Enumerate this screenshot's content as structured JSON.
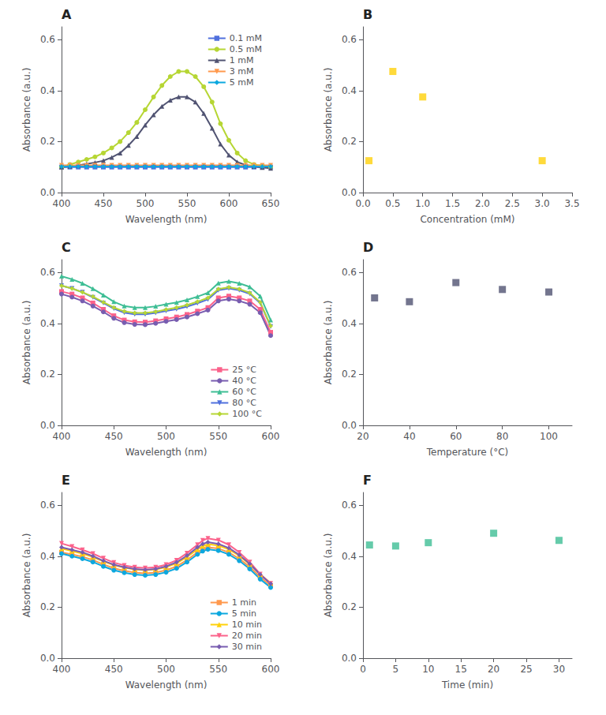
{
  "chart_data": [
    {
      "type": "line",
      "annotations": [
        "A"
      ],
      "xlabel": "Wavelength (nm)",
      "ylabel": "Absorbance (a.u.)",
      "x": [
        400,
        410,
        420,
        430,
        440,
        450,
        460,
        470,
        480,
        490,
        500,
        510,
        520,
        530,
        540,
        550,
        560,
        570,
        580,
        590,
        600,
        610,
        620,
        630,
        640,
        650
      ],
      "series": [
        {
          "name": "0.1 mM",
          "marker": "square",
          "values": [
            0.1,
            0.1,
            0.1,
            0.1,
            0.1,
            0.1,
            0.1,
            0.1,
            0.1,
            0.1,
            0.1,
            0.1,
            0.1,
            0.1,
            0.1,
            0.1,
            0.1,
            0.1,
            0.1,
            0.1,
            0.1,
            0.1,
            0.1,
            0.1,
            0.1,
            0.1
          ]
        },
        {
          "name": "0.5 mM",
          "marker": "circle",
          "values": [
            0.1,
            0.11,
            0.12,
            0.13,
            0.14,
            0.155,
            0.175,
            0.2,
            0.235,
            0.275,
            0.325,
            0.375,
            0.42,
            0.455,
            0.475,
            0.475,
            0.455,
            0.415,
            0.355,
            0.27,
            0.205,
            0.155,
            0.125,
            0.11,
            0.105,
            0.1
          ]
        },
        {
          "name": "1 mM",
          "marker": "triangle_up",
          "values": [
            0.1,
            0.103,
            0.107,
            0.112,
            0.118,
            0.125,
            0.138,
            0.155,
            0.185,
            0.22,
            0.265,
            0.305,
            0.338,
            0.362,
            0.375,
            0.375,
            0.355,
            0.31,
            0.252,
            0.19,
            0.147,
            0.12,
            0.108,
            0.102,
            0.098,
            0.095
          ]
        },
        {
          "name": "3 mM",
          "marker": "triangle_down",
          "values": [
            0.107,
            0.107,
            0.107,
            0.107,
            0.107,
            0.107,
            0.107,
            0.107,
            0.107,
            0.107,
            0.107,
            0.107,
            0.107,
            0.107,
            0.107,
            0.107,
            0.107,
            0.107,
            0.107,
            0.107,
            0.107,
            0.107,
            0.107,
            0.107,
            0.107,
            0.107
          ]
        },
        {
          "name": "5 mM",
          "marker": "diamond",
          "values": [
            0.102,
            0.102,
            0.102,
            0.102,
            0.102,
            0.102,
            0.102,
            0.102,
            0.102,
            0.102,
            0.102,
            0.102,
            0.102,
            0.102,
            0.102,
            0.102,
            0.102,
            0.102,
            0.102,
            0.102,
            0.102,
            0.102,
            0.102,
            0.102,
            0.102,
            0.102
          ]
        }
      ],
      "xlim": [
        400,
        650
      ],
      "xticks": [
        400,
        450,
        500,
        550,
        600,
        650
      ],
      "ylim": [
        0.0,
        0.65
      ],
      "yticks": [
        {
          "value": 0.0,
          "label": "0.0"
        },
        0.2,
        0.4,
        0.6
      ],
      "legend": "upper right",
      "grid": false
    },
    {
      "type": "scatter",
      "annotations": [
        "B"
      ],
      "xlabel": "Concentration (mM)",
      "ylabel": "Absorbance (a.u.)",
      "x": [
        0.1,
        0.5,
        1.0,
        3.0
      ],
      "values": [
        0.125,
        0.475,
        0.375,
        0.125
      ],
      "marker": "square",
      "xlim": [
        0,
        3.5
      ],
      "xticks": [
        {
          "value": 0.0,
          "label": "0.0"
        },
        0.5,
        {
          "value": 1.0,
          "label": "1.0"
        },
        1.5,
        {
          "value": 2.0,
          "label": "2.0"
        },
        2.5,
        {
          "value": 3.0,
          "label": "3.0"
        },
        3.5
      ],
      "ylim": [
        0.0,
        0.65
      ],
      "yticks": [
        {
          "value": 0.0,
          "label": "0.0"
        },
        0.2,
        0.4,
        0.6
      ],
      "grid": false
    },
    {
      "type": "line",
      "annotations": [
        "C"
      ],
      "xlabel": "Wavelength (nm)",
      "ylabel": "Absorbance (a.u.)",
      "x": [
        400,
        410,
        420,
        430,
        440,
        450,
        460,
        470,
        480,
        490,
        500,
        510,
        520,
        530,
        540,
        550,
        560,
        570,
        580,
        590,
        600
      ],
      "series": [
        {
          "name": "25 °C",
          "marker": "square",
          "values": [
            0.525,
            0.515,
            0.5,
            0.48,
            0.455,
            0.43,
            0.413,
            0.406,
            0.405,
            0.41,
            0.418,
            0.425,
            0.435,
            0.448,
            0.462,
            0.5,
            0.507,
            0.5,
            0.488,
            0.455,
            0.365
          ]
        },
        {
          "name": "40 °C",
          "marker": "circle",
          "values": [
            0.515,
            0.503,
            0.488,
            0.468,
            0.445,
            0.42,
            0.403,
            0.396,
            0.395,
            0.4,
            0.408,
            0.415,
            0.425,
            0.438,
            0.452,
            0.488,
            0.495,
            0.488,
            0.475,
            0.442,
            0.352
          ]
        },
        {
          "name": "60 °C",
          "marker": "triangle_up",
          "values": [
            0.585,
            0.573,
            0.557,
            0.536,
            0.511,
            0.485,
            0.468,
            0.462,
            0.462,
            0.467,
            0.475,
            0.482,
            0.492,
            0.505,
            0.52,
            0.558,
            0.565,
            0.557,
            0.543,
            0.507,
            0.413
          ]
        },
        {
          "name": "80 °C",
          "marker": "triangle_down",
          "values": [
            0.548,
            0.537,
            0.522,
            0.502,
            0.48,
            0.458,
            0.442,
            0.436,
            0.436,
            0.441,
            0.449,
            0.456,
            0.466,
            0.479,
            0.494,
            0.53,
            0.537,
            0.53,
            0.516,
            0.48,
            0.388
          ]
        },
        {
          "name": "100 °C",
          "marker": "diamond",
          "values": [
            0.548,
            0.537,
            0.522,
            0.505,
            0.483,
            0.462,
            0.447,
            0.441,
            0.441,
            0.446,
            0.454,
            0.462,
            0.472,
            0.485,
            0.5,
            0.535,
            0.542,
            0.535,
            0.52,
            0.483,
            0.39
          ]
        }
      ],
      "xlim": [
        400,
        600
      ],
      "xticks": [
        400,
        450,
        500,
        550,
        600
      ],
      "ylim": [
        0.0,
        0.65
      ],
      "yticks": [
        {
          "value": 0.0,
          "label": "0.0"
        },
        0.2,
        0.4,
        0.6
      ],
      "legend": "lower right",
      "grid": false
    },
    {
      "type": "scatter",
      "annotations": [
        "D"
      ],
      "xlabel": "Temperature (°C)",
      "ylabel": "Absorbance (a.u.)",
      "x": [
        25,
        40,
        60,
        80,
        100
      ],
      "values": [
        0.5,
        0.485,
        0.56,
        0.533,
        0.523
      ],
      "marker": "square",
      "xlim": [
        20,
        110
      ],
      "xticks": [
        20,
        40,
        60,
        80,
        100
      ],
      "ylim": [
        0.0,
        0.65
      ],
      "yticks": [
        {
          "value": 0.0,
          "label": "0.0"
        },
        0.2,
        0.4,
        0.6
      ],
      "grid": false
    },
    {
      "type": "line",
      "annotations": [
        "E"
      ],
      "xlabel": "Wavelength (nm)",
      "ylabel": "Absorbance (a.u.)",
      "x": [
        400,
        410,
        420,
        430,
        440,
        450,
        460,
        470,
        480,
        490,
        500,
        510,
        520,
        530,
        535,
        540,
        550,
        560,
        570,
        580,
        590,
        600
      ],
      "series": [
        {
          "name": "1 min",
          "marker": "square",
          "values": [
            0.415,
            0.407,
            0.398,
            0.385,
            0.368,
            0.353,
            0.343,
            0.336,
            0.333,
            0.336,
            0.345,
            0.36,
            0.385,
            0.415,
            0.428,
            0.435,
            0.43,
            0.415,
            0.39,
            0.358,
            0.318,
            0.285
          ]
        },
        {
          "name": "5 min",
          "marker": "circle",
          "values": [
            0.41,
            0.4,
            0.39,
            0.377,
            0.36,
            0.345,
            0.335,
            0.328,
            0.325,
            0.328,
            0.337,
            0.352,
            0.377,
            0.407,
            0.42,
            0.427,
            0.422,
            0.407,
            0.382,
            0.35,
            0.31,
            0.277
          ]
        },
        {
          "name": "10 min",
          "marker": "triangle_up",
          "values": [
            0.43,
            0.42,
            0.41,
            0.397,
            0.38,
            0.365,
            0.355,
            0.348,
            0.345,
            0.348,
            0.357,
            0.372,
            0.397,
            0.427,
            0.44,
            0.447,
            0.442,
            0.427,
            0.402,
            0.368,
            0.328,
            0.295
          ]
        },
        {
          "name": "20 min",
          "marker": "triangle_down",
          "values": [
            0.45,
            0.438,
            0.425,
            0.41,
            0.392,
            0.375,
            0.364,
            0.357,
            0.354,
            0.357,
            0.367,
            0.384,
            0.412,
            0.445,
            0.462,
            0.47,
            0.463,
            0.445,
            0.415,
            0.377,
            0.33,
            0.293
          ]
        },
        {
          "name": "30 min",
          "marker": "diamond",
          "values": [
            0.435,
            0.425,
            0.415,
            0.4,
            0.382,
            0.367,
            0.357,
            0.35,
            0.347,
            0.35,
            0.36,
            0.376,
            0.402,
            0.435,
            0.448,
            0.455,
            0.448,
            0.432,
            0.405,
            0.37,
            0.328,
            0.292
          ]
        }
      ],
      "xlim": [
        400,
        600
      ],
      "xticks": [
        400,
        450,
        500,
        550,
        600
      ],
      "ylim": [
        0.0,
        0.65
      ],
      "yticks": [
        {
          "value": 0.0,
          "label": "0.0"
        },
        0.2,
        0.4,
        0.6
      ],
      "legend": "lower right",
      "grid": false
    },
    {
      "type": "scatter",
      "annotations": [
        "F"
      ],
      "xlabel": "Time (min)",
      "ylabel": "Absorbance (a.u.)",
      "x": [
        1,
        5,
        10,
        20,
        30
      ],
      "values": [
        0.444,
        0.44,
        0.453,
        0.49,
        0.462
      ],
      "marker": "square",
      "xlim": [
        0,
        32
      ],
      "xticks": [
        0,
        5,
        10,
        15,
        20,
        25,
        30
      ],
      "ylim": [
        0.0,
        0.65
      ],
      "yticks": [
        {
          "value": 0.0,
          "label": "0.0"
        },
        0.2,
        0.4,
        0.6
      ],
      "grid": false
    }
  ]
}
